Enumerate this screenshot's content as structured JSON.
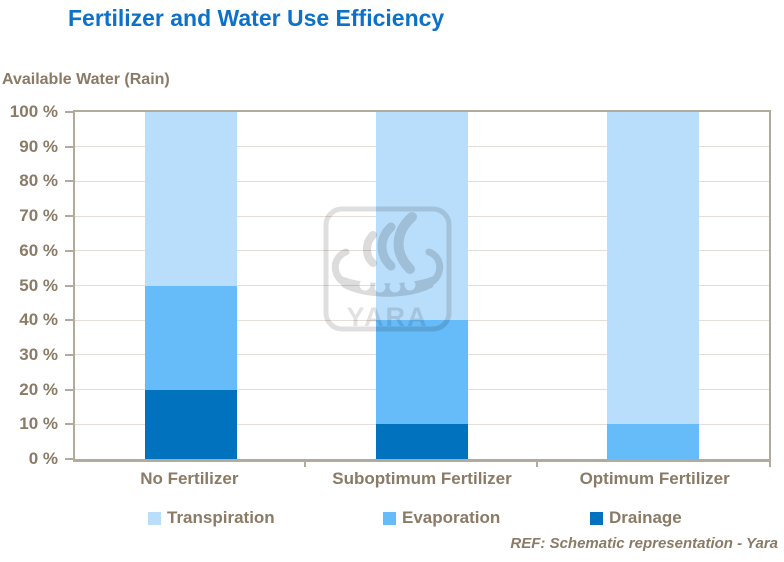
{
  "title": "Fertilizer and Water Use Efficiency",
  "footer": "REF: Schematic representation - Yara",
  "watermark": {
    "brand": "YARA"
  },
  "colors": {
    "title_text": "#0D72C7",
    "label_text": "#8A7A66",
    "plot_border": "#B3AA9E",
    "gridline": "#E4DED6",
    "watermark_gray": "#DFDFDF"
  },
  "chart_data": {
    "type": "bar",
    "stacked": true,
    "title": "Fertilizer and Water Use Efficiency",
    "ylabel": "Available Water (Rain)",
    "xlabel": "",
    "categories": [
      "No Fertilizer",
      "Suboptimum Fertilizer",
      "Optimum Fertilizer"
    ],
    "series": [
      {
        "name": "Drainage",
        "color": "#0072BE",
        "values": [
          20,
          10,
          0
        ]
      },
      {
        "name": "Evaporation",
        "color": "#66BBF9",
        "values": [
          30,
          30,
          10
        ]
      },
      {
        "name": "Transpiration",
        "color": "#B9DEFB",
        "values": [
          50,
          60,
          90
        ]
      }
    ],
    "stack_order": "bottom-to-top",
    "ylim": [
      0,
      100
    ],
    "yticks": [
      "0 %",
      "10 %",
      "20 %",
      "30 %",
      "40 %",
      "50 %",
      "60 %",
      "70 %",
      "80 %",
      "90 %",
      "100 %"
    ],
    "grid": true,
    "legend_position": "bottom",
    "legend": [
      {
        "label": "Transpiration",
        "color": "#B9DEFB"
      },
      {
        "label": "Evaporation",
        "color": "#66BBF9"
      },
      {
        "label": "Drainage",
        "color": "#0072BE"
      }
    ],
    "source_note": "REF: Schematic representation - Yara"
  }
}
